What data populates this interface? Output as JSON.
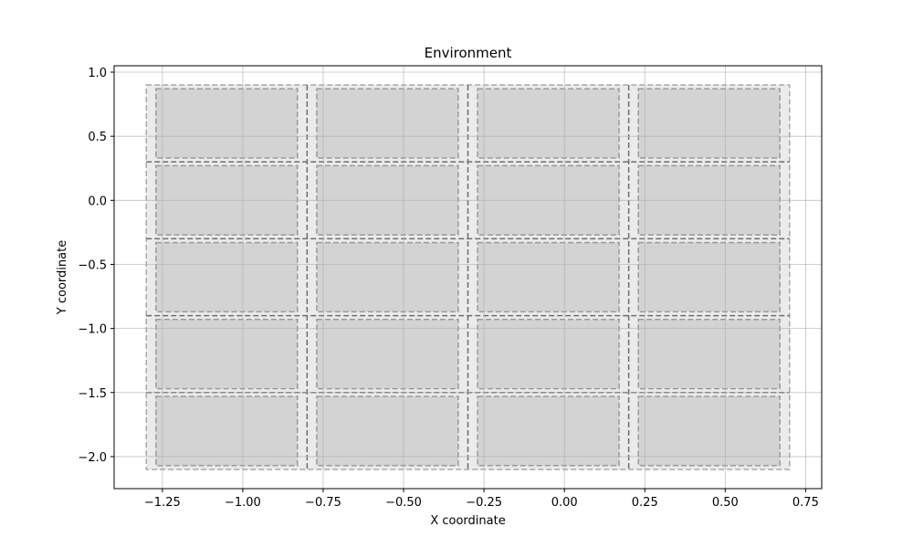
{
  "chart_data": {
    "type": "grid-layout",
    "title": "Environment",
    "xlabel": "X coordinate",
    "ylabel": "Y coordinate",
    "xlim": [
      -1.4,
      0.8
    ],
    "ylim": [
      -2.25,
      1.05
    ],
    "xticks": [
      -1.25,
      -1.0,
      -0.75,
      -0.5,
      -0.25,
      0.0,
      0.25,
      0.5,
      0.75
    ],
    "xtick_labels": [
      "−1.25",
      "−1.00",
      "−0.75",
      "−0.50",
      "−0.25",
      "0.00",
      "0.25",
      "0.50",
      "0.75"
    ],
    "yticks": [
      1.0,
      0.5,
      0.0,
      -0.5,
      -1.0,
      -1.5,
      -2.0
    ],
    "ytick_labels": [
      "1.0",
      "0.5",
      "0.0",
      "−0.5",
      "−1.0",
      "−1.5",
      "−2.0"
    ],
    "grid": true,
    "outer_bounds": {
      "x": [
        -1.3,
        0.7
      ],
      "y": [
        -2.1,
        0.9
      ]
    },
    "cells": {
      "col_edges": [
        -1.3,
        -0.8,
        -0.3,
        0.2,
        0.7
      ],
      "row_edges": [
        0.9,
        0.3,
        -0.3,
        -0.9,
        -1.5,
        -2.1
      ],
      "inner_x": [
        [
          -1.27,
          -0.83
        ],
        [
          -0.77,
          -0.33
        ],
        [
          -0.27,
          0.17
        ],
        [
          0.23,
          0.67
        ]
      ],
      "inner_y": [
        [
          0.87,
          0.33
        ],
        [
          0.27,
          -0.27
        ],
        [
          -0.33,
          -0.87
        ],
        [
          -0.93,
          -1.47
        ],
        [
          -1.53,
          -2.07
        ]
      ]
    },
    "colors": {
      "outer_fill": "#ebebeb",
      "inner_fill": "#d3d3d3",
      "inner_stroke": "#9a9a9a",
      "outer_stroke": "#a8a8a8",
      "divider_stroke": "#6e6e6e",
      "grid": "#b0b0b0"
    }
  }
}
